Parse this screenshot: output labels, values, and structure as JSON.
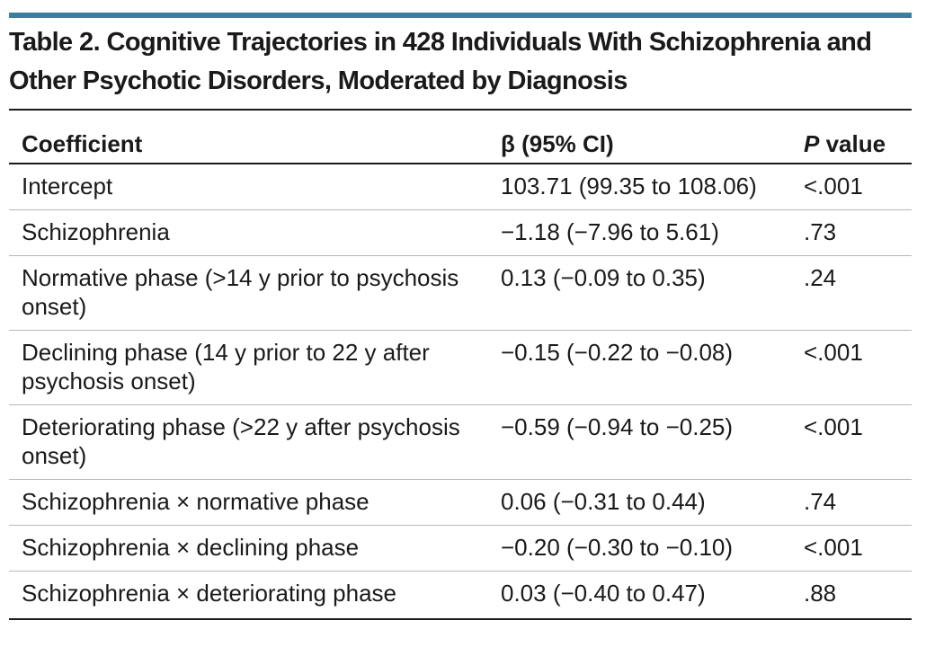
{
  "title": "Table 2. Cognitive Trajectories in 428 Individuals With Schizophrenia and Other Psychotic Disorders, Moderated by Diagnosis",
  "columns": {
    "coefficient": "Coefficient",
    "beta": "β (95% CI)",
    "p_italic": "P",
    "p_rest": " value"
  },
  "rows": [
    {
      "coefficient": "Intercept",
      "beta": "103.71 (99.35 to 108.06)",
      "p": "<.001"
    },
    {
      "coefficient": "Schizophrenia",
      "beta": "−1.18 (−7.96 to 5.61)",
      "p": ".73"
    },
    {
      "coefficient": "Normative phase (>14 y prior to psychosis onset)",
      "beta": "0.13 (−0.09 to 0.35)",
      "p": ".24"
    },
    {
      "coefficient": "Declining phase (14 y prior to 22 y after psychosis onset)",
      "beta": "−0.15 (−0.22 to −0.08)",
      "p": "<.001"
    },
    {
      "coefficient": "Deteriorating phase (>22 y after psychosis onset)",
      "beta": "−0.59 (−0.94 to −0.25)",
      "p": "<.001"
    },
    {
      "coefficient": "Schizophrenia × normative phase",
      "beta": "0.06 (−0.31 to 0.44)",
      "p": ".74"
    },
    {
      "coefficient": "Schizophrenia × declining phase",
      "beta": "−0.20 (−0.30 to −0.10)",
      "p": "<.001"
    },
    {
      "coefficient": "Schizophrenia × deteriorating phase",
      "beta": "0.03 (−0.40 to 0.47)",
      "p": ".88"
    }
  ],
  "colors": {
    "accent_bar": "#3b7fa0",
    "text": "#1a1a1a",
    "row_divider": "#b8b8b8"
  }
}
